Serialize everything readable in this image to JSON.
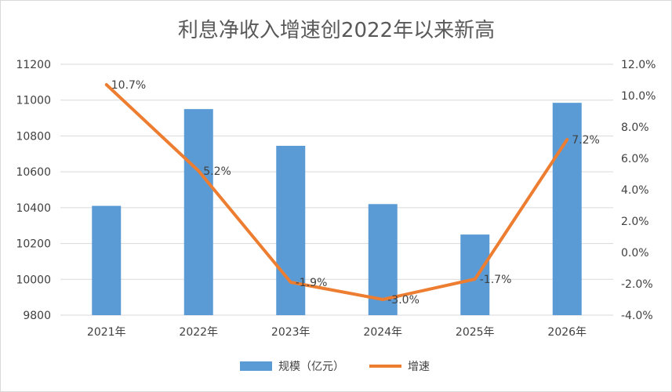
{
  "chart_data": {
    "type": "bar",
    "title": "利息净收入增速创2022年以来新高",
    "categories": [
      "2021年",
      "2022年",
      "2023年",
      "2024年",
      "2025年",
      "2026年"
    ],
    "series": [
      {
        "name": "规模（亿元）",
        "type": "bar",
        "axis": "left",
        "color": "#5b9bd5",
        "values": [
          10410,
          10950,
          10745,
          10420,
          10250,
          10985
        ]
      },
      {
        "name": "增速",
        "type": "line",
        "axis": "right",
        "color": "#ed7d31",
        "values": [
          10.7,
          5.2,
          -1.9,
          -3.0,
          -1.7,
          7.2
        ],
        "data_labels": [
          "10.7%",
          "5.2%",
          "-1.9%",
          "-3.0%",
          "-1.7%",
          "7.2%"
        ]
      }
    ],
    "y_left": {
      "ylim": [
        9800,
        11200
      ],
      "ticks": [
        "9800",
        "10000",
        "10200",
        "10400",
        "10600",
        "10800",
        "11000",
        "11200"
      ]
    },
    "y_right": {
      "ylim": [
        -4,
        12
      ],
      "ticks": [
        "-4.0%",
        "-2.0%",
        "0.0%",
        "2.0%",
        "4.0%",
        "6.0%",
        "8.0%",
        "10.0%",
        "12.0%"
      ]
    },
    "grid": true,
    "legend_position": "bottom"
  }
}
